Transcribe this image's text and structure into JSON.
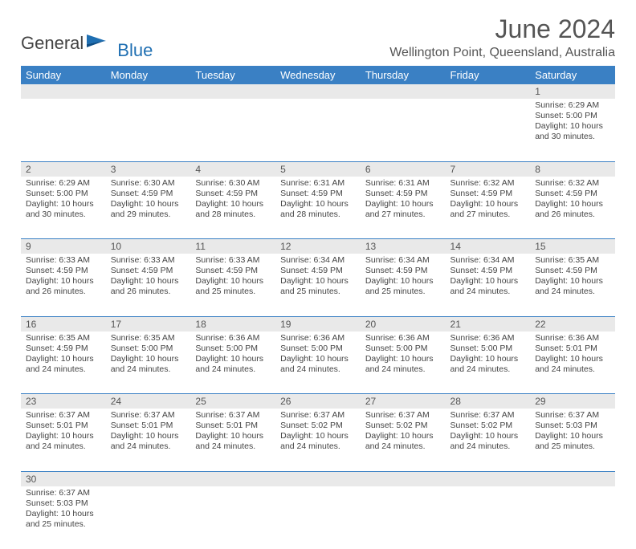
{
  "brand": {
    "text1": "General",
    "text2": "Blue",
    "flag_color": "#1f6fb2"
  },
  "title": "June 2024",
  "location": "Wellington Point, Queensland, Australia",
  "header_bg": "#3a80c4",
  "daynum_bg": "#e9e9e9",
  "border_color": "#3a80c4",
  "text_color": "#444444",
  "title_color": "#555555",
  "days": [
    "Sunday",
    "Monday",
    "Tuesday",
    "Wednesday",
    "Thursday",
    "Friday",
    "Saturday"
  ],
  "weeks": [
    [
      null,
      null,
      null,
      null,
      null,
      null,
      {
        "n": "1",
        "sunrise": "6:29 AM",
        "sunset": "5:00 PM",
        "dayh": "10",
        "daym": "30"
      }
    ],
    [
      {
        "n": "2",
        "sunrise": "6:29 AM",
        "sunset": "5:00 PM",
        "dayh": "10",
        "daym": "30"
      },
      {
        "n": "3",
        "sunrise": "6:30 AM",
        "sunset": "4:59 PM",
        "dayh": "10",
        "daym": "29"
      },
      {
        "n": "4",
        "sunrise": "6:30 AM",
        "sunset": "4:59 PM",
        "dayh": "10",
        "daym": "28"
      },
      {
        "n": "5",
        "sunrise": "6:31 AM",
        "sunset": "4:59 PM",
        "dayh": "10",
        "daym": "28"
      },
      {
        "n": "6",
        "sunrise": "6:31 AM",
        "sunset": "4:59 PM",
        "dayh": "10",
        "daym": "27"
      },
      {
        "n": "7",
        "sunrise": "6:32 AM",
        "sunset": "4:59 PM",
        "dayh": "10",
        "daym": "27"
      },
      {
        "n": "8",
        "sunrise": "6:32 AM",
        "sunset": "4:59 PM",
        "dayh": "10",
        "daym": "26"
      }
    ],
    [
      {
        "n": "9",
        "sunrise": "6:33 AM",
        "sunset": "4:59 PM",
        "dayh": "10",
        "daym": "26"
      },
      {
        "n": "10",
        "sunrise": "6:33 AM",
        "sunset": "4:59 PM",
        "dayh": "10",
        "daym": "26"
      },
      {
        "n": "11",
        "sunrise": "6:33 AM",
        "sunset": "4:59 PM",
        "dayh": "10",
        "daym": "25"
      },
      {
        "n": "12",
        "sunrise": "6:34 AM",
        "sunset": "4:59 PM",
        "dayh": "10",
        "daym": "25"
      },
      {
        "n": "13",
        "sunrise": "6:34 AM",
        "sunset": "4:59 PM",
        "dayh": "10",
        "daym": "25"
      },
      {
        "n": "14",
        "sunrise": "6:34 AM",
        "sunset": "4:59 PM",
        "dayh": "10",
        "daym": "24"
      },
      {
        "n": "15",
        "sunrise": "6:35 AM",
        "sunset": "4:59 PM",
        "dayh": "10",
        "daym": "24"
      }
    ],
    [
      {
        "n": "16",
        "sunrise": "6:35 AM",
        "sunset": "4:59 PM",
        "dayh": "10",
        "daym": "24"
      },
      {
        "n": "17",
        "sunrise": "6:35 AM",
        "sunset": "5:00 PM",
        "dayh": "10",
        "daym": "24"
      },
      {
        "n": "18",
        "sunrise": "6:36 AM",
        "sunset": "5:00 PM",
        "dayh": "10",
        "daym": "24"
      },
      {
        "n": "19",
        "sunrise": "6:36 AM",
        "sunset": "5:00 PM",
        "dayh": "10",
        "daym": "24"
      },
      {
        "n": "20",
        "sunrise": "6:36 AM",
        "sunset": "5:00 PM",
        "dayh": "10",
        "daym": "24"
      },
      {
        "n": "21",
        "sunrise": "6:36 AM",
        "sunset": "5:00 PM",
        "dayh": "10",
        "daym": "24"
      },
      {
        "n": "22",
        "sunrise": "6:36 AM",
        "sunset": "5:01 PM",
        "dayh": "10",
        "daym": "24"
      }
    ],
    [
      {
        "n": "23",
        "sunrise": "6:37 AM",
        "sunset": "5:01 PM",
        "dayh": "10",
        "daym": "24"
      },
      {
        "n": "24",
        "sunrise": "6:37 AM",
        "sunset": "5:01 PM",
        "dayh": "10",
        "daym": "24"
      },
      {
        "n": "25",
        "sunrise": "6:37 AM",
        "sunset": "5:01 PM",
        "dayh": "10",
        "daym": "24"
      },
      {
        "n": "26",
        "sunrise": "6:37 AM",
        "sunset": "5:02 PM",
        "dayh": "10",
        "daym": "24"
      },
      {
        "n": "27",
        "sunrise": "6:37 AM",
        "sunset": "5:02 PM",
        "dayh": "10",
        "daym": "24"
      },
      {
        "n": "28",
        "sunrise": "6:37 AM",
        "sunset": "5:02 PM",
        "dayh": "10",
        "daym": "24"
      },
      {
        "n": "29",
        "sunrise": "6:37 AM",
        "sunset": "5:03 PM",
        "dayh": "10",
        "daym": "25"
      }
    ],
    [
      {
        "n": "30",
        "sunrise": "6:37 AM",
        "sunset": "5:03 PM",
        "dayh": "10",
        "daym": "25"
      },
      null,
      null,
      null,
      null,
      null,
      null
    ]
  ],
  "labels": {
    "sunrise": "Sunrise: ",
    "sunset": "Sunset: ",
    "daylight_pre": "Daylight: ",
    "hours_text": " hours",
    "and_text": "and ",
    "minutes_text": " minutes."
  }
}
